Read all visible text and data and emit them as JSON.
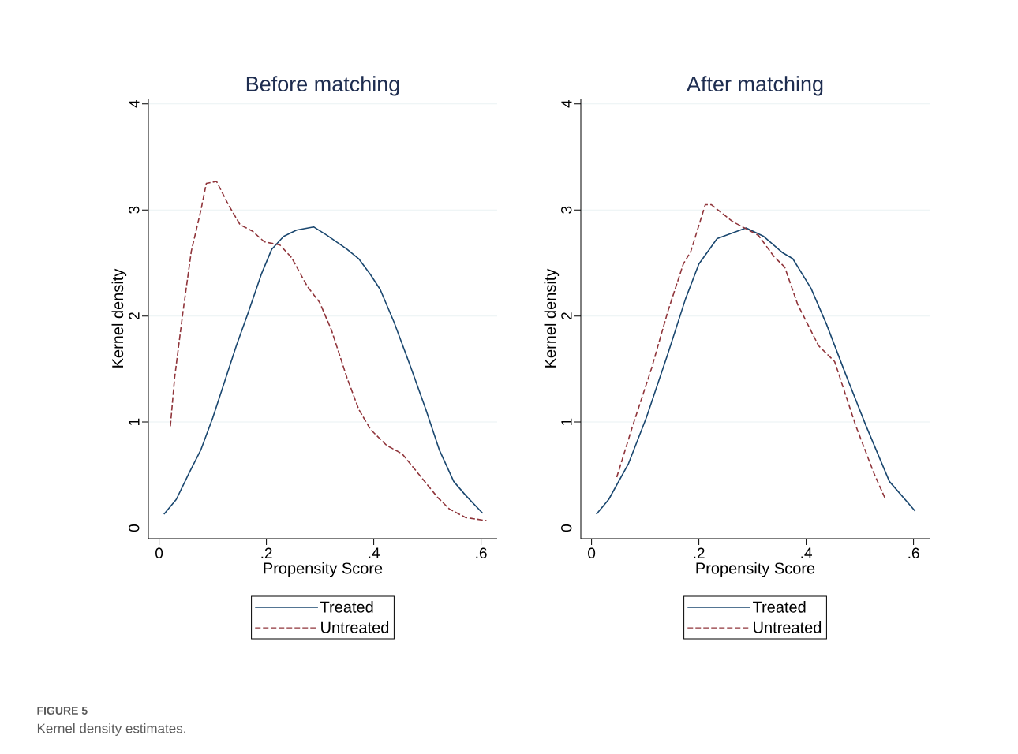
{
  "chart_data": [
    {
      "type": "line",
      "title": "Before matching",
      "xlabel": "Propensity Score",
      "ylabel": "Kernel density",
      "xlim": [
        -0.02,
        0.63
      ],
      "ylim": [
        -0.1,
        4.05
      ],
      "xticks": [
        0,
        {
          "value": 0.2,
          "label": ".2"
        },
        {
          "value": 0.4,
          "label": ".4"
        },
        {
          "value": 0.6,
          "label": ".6"
        }
      ],
      "yticks": [
        0,
        1,
        2,
        3,
        4
      ],
      "grid": "y",
      "legend": "bottom",
      "annotations": [
        "FIGURE 5",
        "Kernel density estimates."
      ],
      "series": [
        {
          "name": "Treated",
          "color": "#1a476f",
          "line_style": "solid",
          "x": [
            0.009,
            0.032,
            0.056,
            0.078,
            0.1,
            0.122,
            0.144,
            0.166,
            0.191,
            0.21,
            0.232,
            0.256,
            0.288,
            0.313,
            0.35,
            0.372,
            0.394,
            0.412,
            0.438,
            0.468,
            0.497,
            0.522,
            0.549,
            0.571,
            0.603
          ],
          "values": [
            0.13,
            0.27,
            0.52,
            0.74,
            1.04,
            1.38,
            1.72,
            2.03,
            2.4,
            2.63,
            2.75,
            2.81,
            2.84,
            2.76,
            2.63,
            2.54,
            2.39,
            2.25,
            1.94,
            1.53,
            1.12,
            0.74,
            0.44,
            0.31,
            0.14
          ]
        },
        {
          "name": "Untreated",
          "color": "#90353b",
          "line_style": "dashed",
          "x": [
            0.021,
            0.029,
            0.044,
            0.06,
            0.078,
            0.088,
            0.107,
            0.129,
            0.151,
            0.174,
            0.196,
            0.225,
            0.247,
            0.276,
            0.299,
            0.321,
            0.35,
            0.372,
            0.394,
            0.424,
            0.453,
            0.482,
            0.519,
            0.541,
            0.571,
            0.61
          ],
          "values": [
            0.96,
            1.42,
            2.02,
            2.61,
            3.0,
            3.25,
            3.27,
            3.05,
            2.86,
            2.8,
            2.7,
            2.67,
            2.55,
            2.28,
            2.13,
            1.87,
            1.42,
            1.12,
            0.93,
            0.78,
            0.7,
            0.52,
            0.29,
            0.18,
            0.1,
            0.07
          ]
        }
      ]
    },
    {
      "type": "line",
      "title": "After matching",
      "xlabel": "Propensity Score",
      "ylabel": "Kernel density",
      "xlim": [
        -0.02,
        0.63
      ],
      "ylim": [
        -0.1,
        4.05
      ],
      "xticks": [
        0,
        {
          "value": 0.2,
          "label": ".2"
        },
        {
          "value": 0.4,
          "label": ".4"
        },
        {
          "value": 0.6,
          "label": ".6"
        }
      ],
      "yticks": [
        0,
        1,
        2,
        3,
        4
      ],
      "grid": "y",
      "legend": "bottom",
      "series": [
        {
          "name": "Treated",
          "color": "#1a476f",
          "line_style": "solid",
          "x": [
            0.009,
            0.032,
            0.069,
            0.102,
            0.142,
            0.175,
            0.2,
            0.234,
            0.288,
            0.321,
            0.355,
            0.375,
            0.409,
            0.438,
            0.472,
            0.511,
            0.555,
            0.603
          ],
          "values": [
            0.13,
            0.27,
            0.61,
            1.04,
            1.64,
            2.16,
            2.49,
            2.73,
            2.83,
            2.75,
            2.6,
            2.54,
            2.26,
            1.92,
            1.47,
            0.97,
            0.44,
            0.16
          ]
        },
        {
          "name": "Untreated",
          "color": "#90353b",
          "line_style": "dashed",
          "x": [
            0.047,
            0.077,
            0.112,
            0.142,
            0.171,
            0.185,
            0.212,
            0.223,
            0.263,
            0.311,
            0.34,
            0.36,
            0.384,
            0.423,
            0.453,
            0.492,
            0.526,
            0.547
          ],
          "values": [
            0.48,
            0.97,
            1.51,
            2.04,
            2.49,
            2.61,
            3.05,
            3.05,
            2.89,
            2.76,
            2.56,
            2.46,
            2.11,
            1.72,
            1.57,
            0.97,
            0.52,
            0.28
          ]
        }
      ]
    }
  ]
}
